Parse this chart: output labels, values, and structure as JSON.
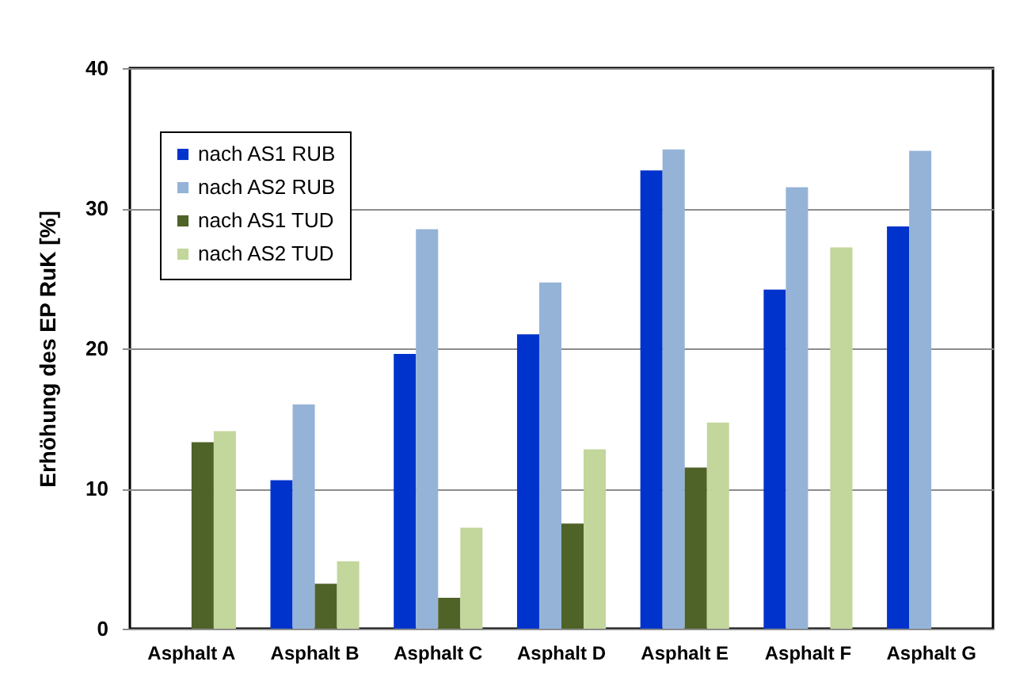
{
  "chart_data": {
    "type": "bar",
    "ylabel": "Erhöhung des EP RuK [%]",
    "categories": [
      "Asphalt A",
      "Asphalt B",
      "Asphalt C",
      "Asphalt D",
      "Asphalt E",
      "Asphalt F",
      "Asphalt G"
    ],
    "series": [
      {
        "name": "nach AS1 RUB",
        "color": "#0033cc",
        "values": [
          null,
          10.6,
          19.6,
          21.0,
          32.7,
          24.2,
          28.7
        ]
      },
      {
        "name": "nach AS2 RUB",
        "color": "#95b3d7",
        "values": [
          null,
          16.0,
          28.5,
          24.7,
          34.2,
          31.5,
          34.1
        ]
      },
      {
        "name": "nach AS1 TUD",
        "color": "#4f6228",
        "values": [
          13.3,
          3.2,
          2.2,
          7.5,
          11.5,
          null,
          null
        ]
      },
      {
        "name": "nach AS2 TUD",
        "color": "#c3d69b",
        "values": [
          14.1,
          4.8,
          7.2,
          12.8,
          14.7,
          27.2,
          null
        ]
      }
    ],
    "ylim": [
      0,
      40
    ],
    "yticks": [
      0,
      10,
      20,
      30,
      40
    ],
    "grid": "y",
    "legend": "top left"
  }
}
